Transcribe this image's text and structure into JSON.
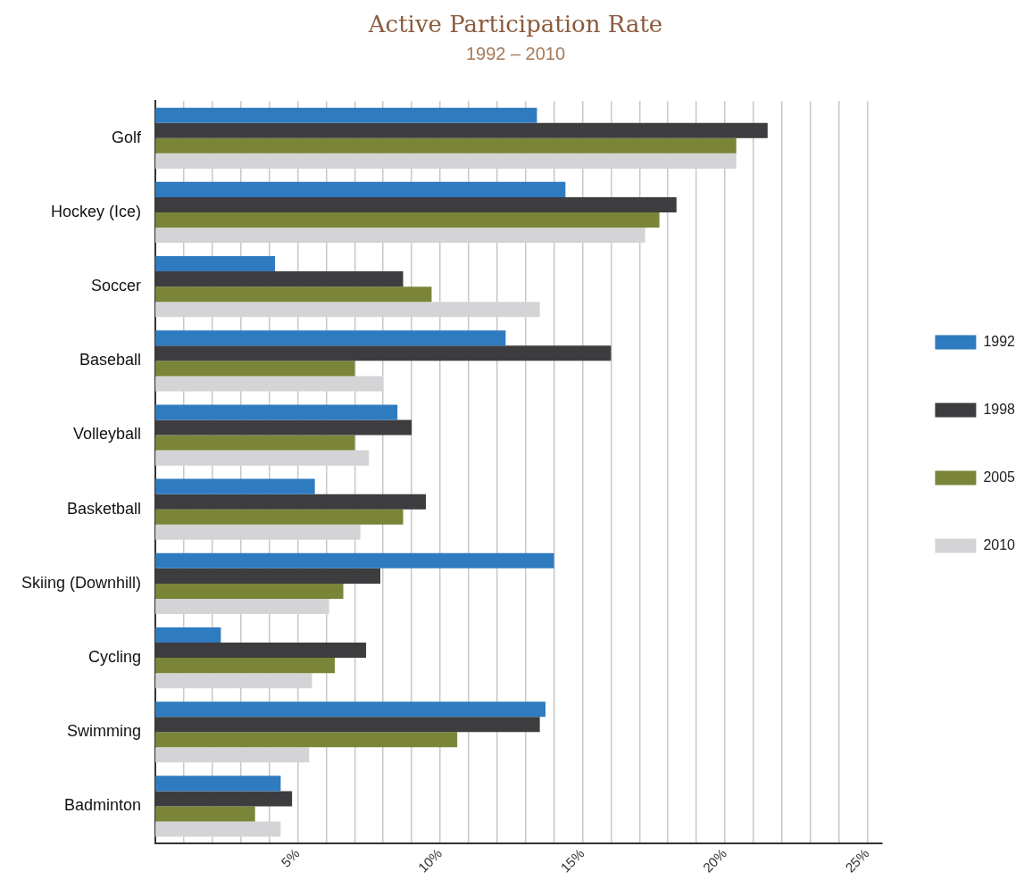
{
  "chart_data": {
    "type": "bar",
    "orientation": "horizontal",
    "title": "Active Participation Rate",
    "subtitle": "1992 – 2010",
    "categories": [
      "Golf",
      "Hockey (Ice)",
      "Soccer",
      "Baseball",
      "Volleyball",
      "Basketball",
      "Skiing (Downhill)",
      "Cycling",
      "Swimming",
      "Badminton"
    ],
    "series": [
      {
        "name": "1992",
        "color": "#2f7bc0",
        "values": [
          13.4,
          14.4,
          4.2,
          12.3,
          8.5,
          5.6,
          14.0,
          2.3,
          13.7,
          4.4
        ]
      },
      {
        "name": "1998",
        "color": "#3d3d3f",
        "values": [
          21.5,
          18.3,
          8.7,
          16.0,
          9.0,
          9.5,
          7.9,
          7.4,
          13.5,
          4.8
        ]
      },
      {
        "name": "2005",
        "color": "#7a8538",
        "values": [
          20.4,
          17.7,
          9.7,
          7.0,
          7.0,
          8.7,
          6.6,
          6.3,
          10.6,
          3.5
        ]
      },
      {
        "name": "2010",
        "color": "#d4d4d6",
        "values": [
          20.4,
          17.2,
          13.5,
          8.0,
          7.5,
          7.2,
          6.1,
          5.5,
          5.4,
          4.4
        ]
      }
    ],
    "xlim": [
      0,
      25.5
    ],
    "xticks": [
      {
        "value": 1,
        "label": null
      },
      {
        "value": 2,
        "label": null
      },
      {
        "value": 3,
        "label": null
      },
      {
        "value": 4,
        "label": null
      },
      {
        "value": 5,
        "label": "5%"
      },
      {
        "value": 6,
        "label": null
      },
      {
        "value": 7,
        "label": null
      },
      {
        "value": 8,
        "label": null
      },
      {
        "value": 9,
        "label": null
      },
      {
        "value": 10,
        "label": "10%"
      },
      {
        "value": 11,
        "label": null
      },
      {
        "value": 12,
        "label": null
      },
      {
        "value": 13,
        "label": null
      },
      {
        "value": 14,
        "label": null
      },
      {
        "value": 15,
        "label": "15%"
      },
      {
        "value": 16,
        "label": null
      },
      {
        "value": 17,
        "label": null
      },
      {
        "value": 18,
        "label": null
      },
      {
        "value": 19,
        "label": null
      },
      {
        "value": 20,
        "label": "20%"
      },
      {
        "value": 21,
        "label": null
      },
      {
        "value": 22,
        "label": null
      },
      {
        "value": 23,
        "label": null
      },
      {
        "value": 24,
        "label": null
      },
      {
        "value": 25,
        "label": "25%"
      }
    ],
    "grid": "x",
    "legend": "right"
  }
}
